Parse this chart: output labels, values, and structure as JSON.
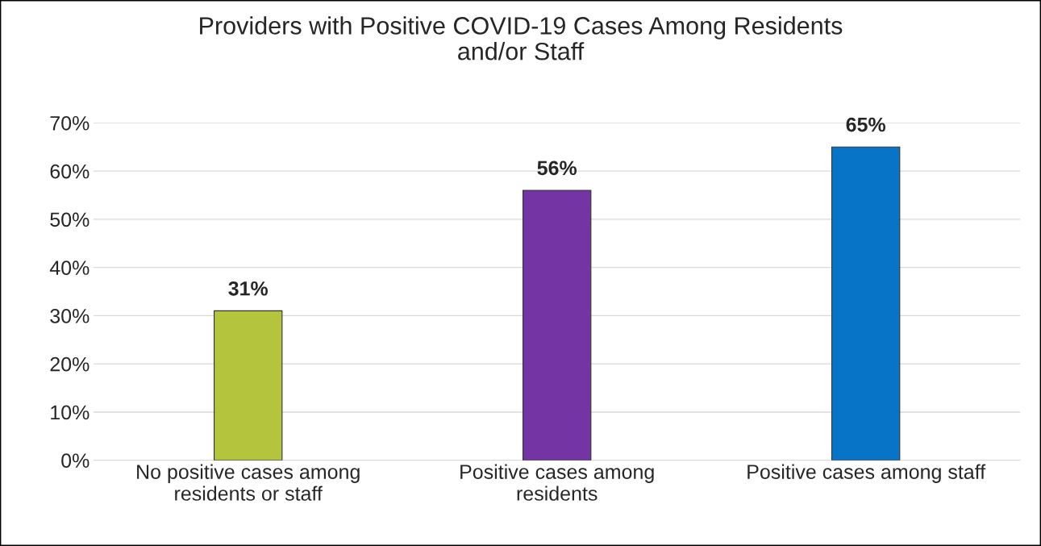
{
  "chart_data": {
    "type": "bar",
    "title": "Providers with Positive COVID-19 Cases Among Residents\nand/or Staff",
    "categories": [
      "No positive cases among\nresidents or staff",
      "Positive cases among\nresidents",
      "Positive cases among staff"
    ],
    "values": [
      31,
      56,
      65
    ],
    "colors": [
      "#b4c43c",
      "#7434a4",
      "#0874c8"
    ],
    "value_labels": [
      "31%",
      "56%",
      "65%"
    ],
    "ylim": [
      0,
      70
    ],
    "yticks": [
      {
        "value": 0,
        "label": "0%"
      },
      {
        "value": 10,
        "label": "10%"
      },
      {
        "value": 20,
        "label": "20%"
      },
      {
        "value": 30,
        "label": "30%"
      },
      {
        "value": 40,
        "label": "40%"
      },
      {
        "value": 50,
        "label": "50%"
      },
      {
        "value": 60,
        "label": "60%"
      },
      {
        "value": 70,
        "label": "70%"
      }
    ],
    "grid": "y"
  }
}
